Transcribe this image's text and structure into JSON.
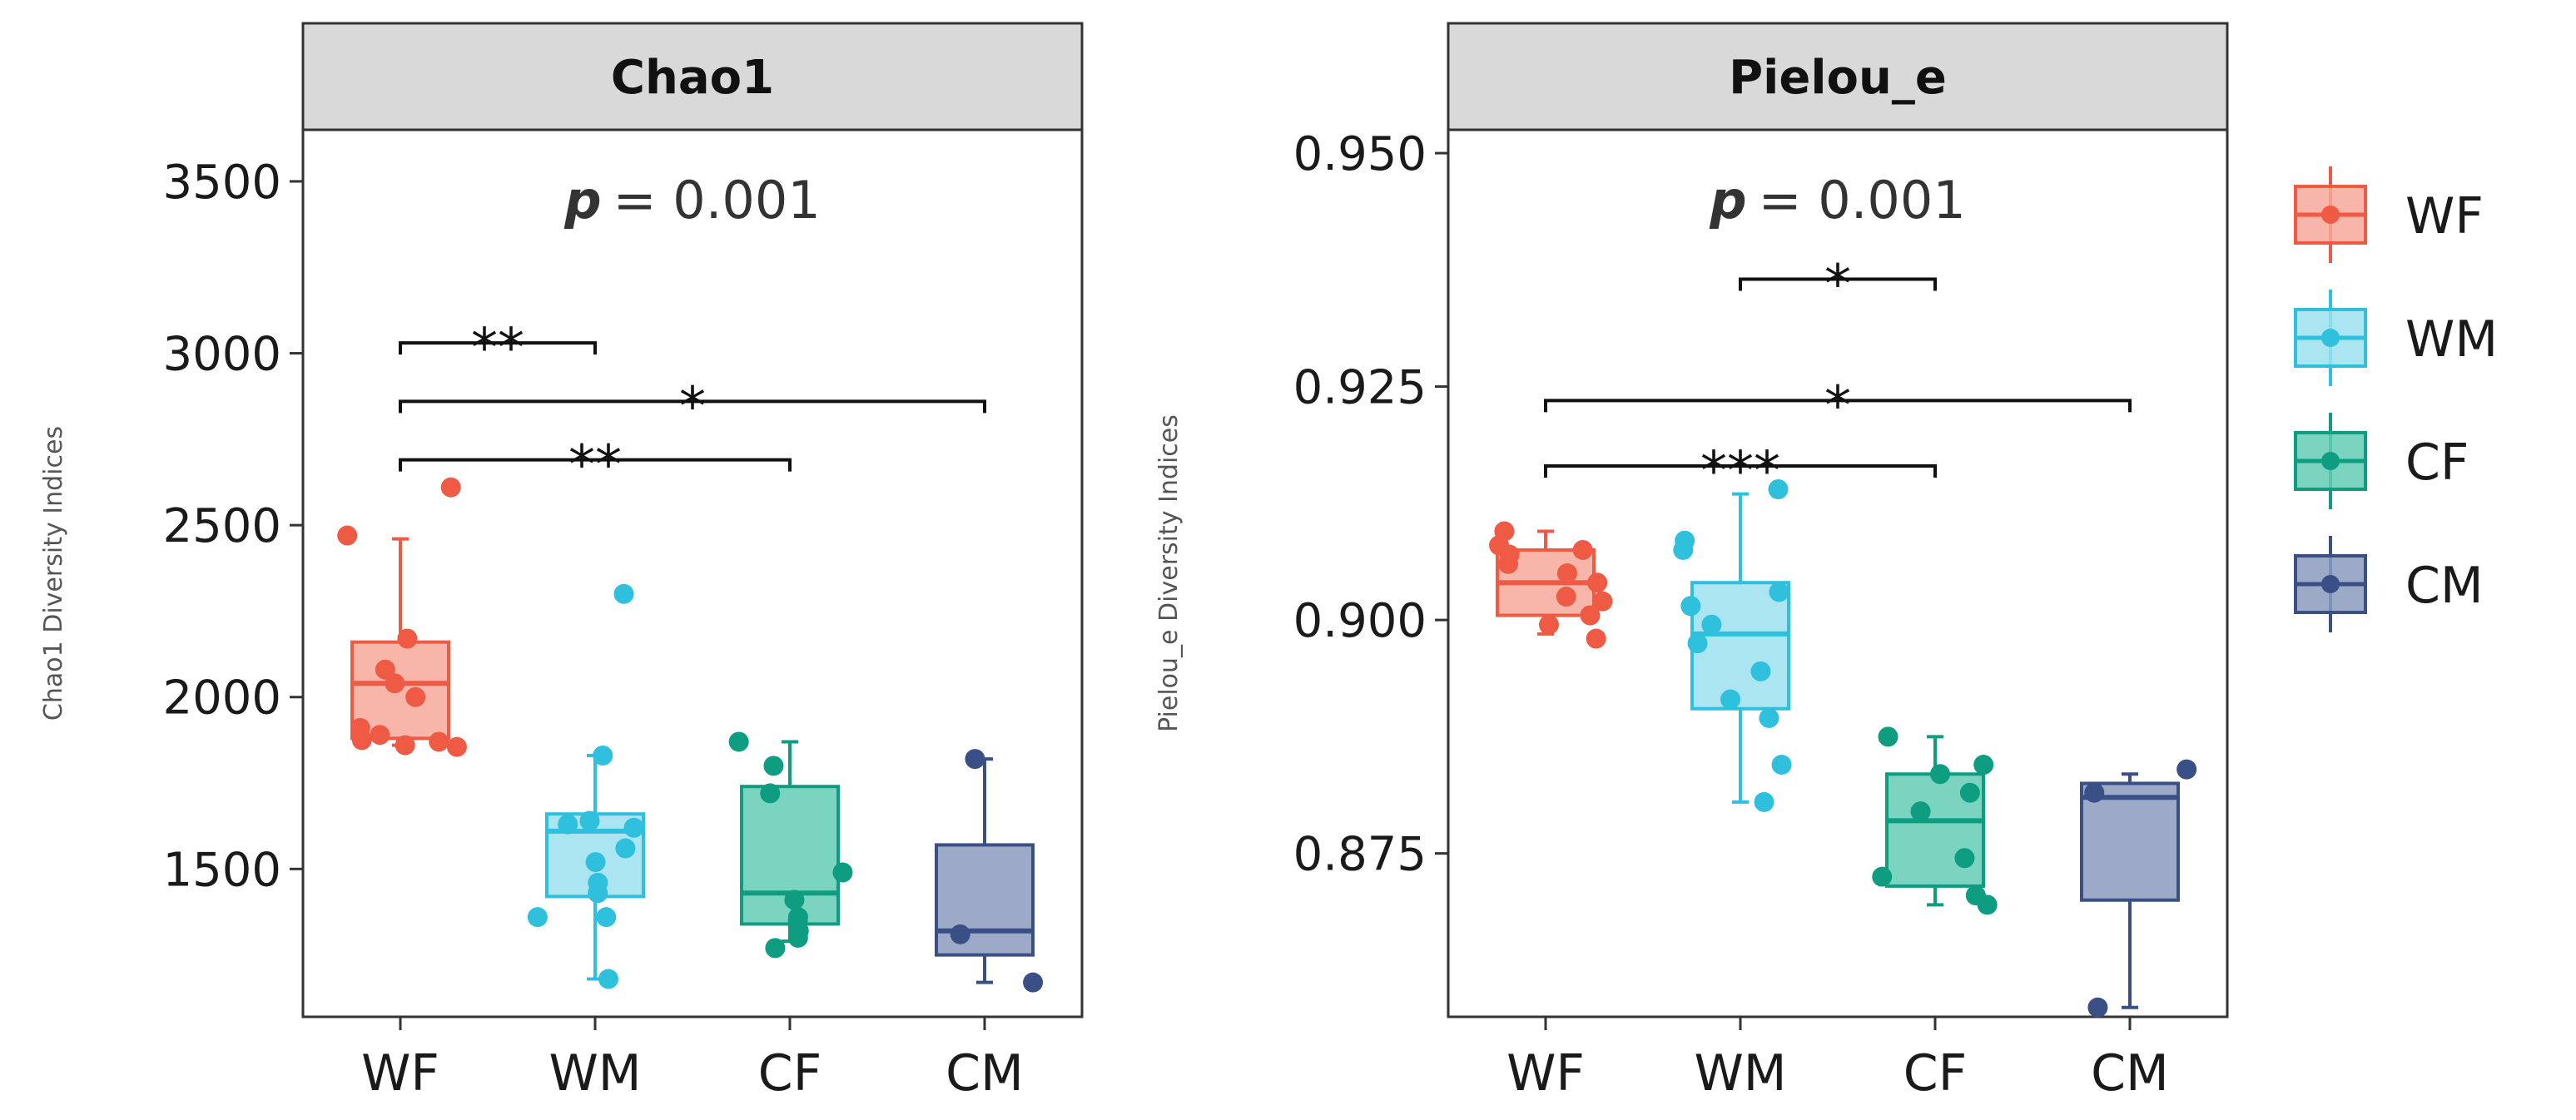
{
  "colors": {
    "WF": {
      "line": "#ef5a44",
      "fill": "#f7a89a"
    },
    "WM": {
      "line": "#2ec0dc",
      "fill": "#9be0ee"
    },
    "CF": {
      "line": "#0f9d82",
      "fill": "#63cdb4"
    },
    "CM": {
      "line": "#3b4f87",
      "fill": "#8b9bbe"
    }
  },
  "legend": {
    "items": [
      {
        "label": "WF",
        "key": "WF"
      },
      {
        "label": "WM",
        "key": "WM"
      },
      {
        "label": "CF",
        "key": "CF"
      },
      {
        "label": "CM",
        "key": "CM"
      }
    ]
  },
  "chart_data": [
    {
      "type": "box",
      "title": "Chao1",
      "ylabel": "Chao1 Diversity Indices",
      "xlabel": "",
      "categories": [
        "WF",
        "WM",
        "CF",
        "CM"
      ],
      "ylim": [
        1070,
        3650
      ],
      "yticks": [
        1500,
        2000,
        2500,
        3000,
        3500
      ],
      "ytick_labels": [
        "1500",
        "2000",
        "2500",
        "3000",
        "3500"
      ],
      "p_label": "p",
      "p_value": "= 0.001",
      "boxes": [
        {
          "group": "WF",
          "min": 1860,
          "q1": 1880,
          "median": 2040,
          "q3": 2160,
          "max": 2460,
          "points": [
            2610,
            2470,
            2170,
            2080,
            2040,
            2000,
            1910,
            1890,
            1860,
            1855,
            1870,
            1875
          ]
        },
        {
          "group": "WM",
          "min": 1180,
          "q1": 1420,
          "median": 1610,
          "q3": 1660,
          "max": 1830,
          "points": [
            2300,
            1830,
            1640,
            1630,
            1620,
            1560,
            1520,
            1460,
            1430,
            1360,
            1360,
            1180
          ]
        },
        {
          "group": "CF",
          "min": 1290,
          "q1": 1340,
          "median": 1430,
          "q3": 1740,
          "max": 1870,
          "points": [
            1870,
            1800,
            1720,
            1490,
            1410,
            1360,
            1350,
            1320,
            1300,
            1270
          ]
        },
        {
          "group": "CM",
          "min": 1170,
          "q1": 1250,
          "median": 1320,
          "q3": 1570,
          "max": 1820,
          "points": [
            1820,
            1310,
            1170
          ]
        }
      ],
      "comparisons": [
        {
          "from": "WF",
          "to": "WM",
          "y": 3030,
          "label": "**"
        },
        {
          "from": "WF",
          "to": "CM",
          "y": 2860,
          "label": "*"
        },
        {
          "from": "WF",
          "to": "CF",
          "y": 2690,
          "label": "**"
        }
      ]
    },
    {
      "type": "box",
      "title": "Pielou_e",
      "ylabel": "Pielou_e Diversity Indices",
      "xlabel": "",
      "categories": [
        "WF",
        "WM",
        "CF",
        "CM"
      ],
      "ylim": [
        0.8575,
        0.9525
      ],
      "yticks": [
        0.875,
        0.9,
        0.925,
        0.95
      ],
      "ytick_labels": [
        "0.875",
        "0.900",
        "0.925",
        "0.950"
      ],
      "p_label": "p",
      "p_value": "= 0.001",
      "boxes": [
        {
          "group": "WF",
          "min": 0.8985,
          "q1": 0.9005,
          "median": 0.904,
          "q3": 0.9075,
          "max": 0.9095,
          "points": [
            0.9095,
            0.908,
            0.9075,
            0.907,
            0.906,
            0.905,
            0.904,
            0.9025,
            0.902,
            0.9005,
            0.8995,
            0.898
          ]
        },
        {
          "group": "WM",
          "min": 0.8805,
          "q1": 0.8905,
          "median": 0.8985,
          "q3": 0.904,
          "max": 0.9135,
          "points": [
            0.914,
            0.9085,
            0.9075,
            0.903,
            0.9015,
            0.8995,
            0.8975,
            0.8945,
            0.8915,
            0.8895,
            0.8845,
            0.8805
          ]
        },
        {
          "group": "CF",
          "min": 0.8695,
          "q1": 0.8715,
          "median": 0.8785,
          "q3": 0.8835,
          "max": 0.8875,
          "points": [
            0.8875,
            0.8845,
            0.8835,
            0.8815,
            0.8795,
            0.8745,
            0.8725,
            0.8705,
            0.8695
          ]
        },
        {
          "group": "CM",
          "min": 0.8585,
          "q1": 0.87,
          "median": 0.881,
          "q3": 0.8825,
          "max": 0.8835,
          "points": [
            0.884,
            0.8815,
            0.8585
          ]
        }
      ],
      "comparisons": [
        {
          "from": "WM",
          "to": "CF",
          "y": 0.9365,
          "label": "*"
        },
        {
          "from": "WF",
          "to": "CM",
          "y": 0.9235,
          "label": "*"
        },
        {
          "from": "WF",
          "to": "CF",
          "y": 0.9165,
          "label": "***"
        }
      ]
    }
  ]
}
